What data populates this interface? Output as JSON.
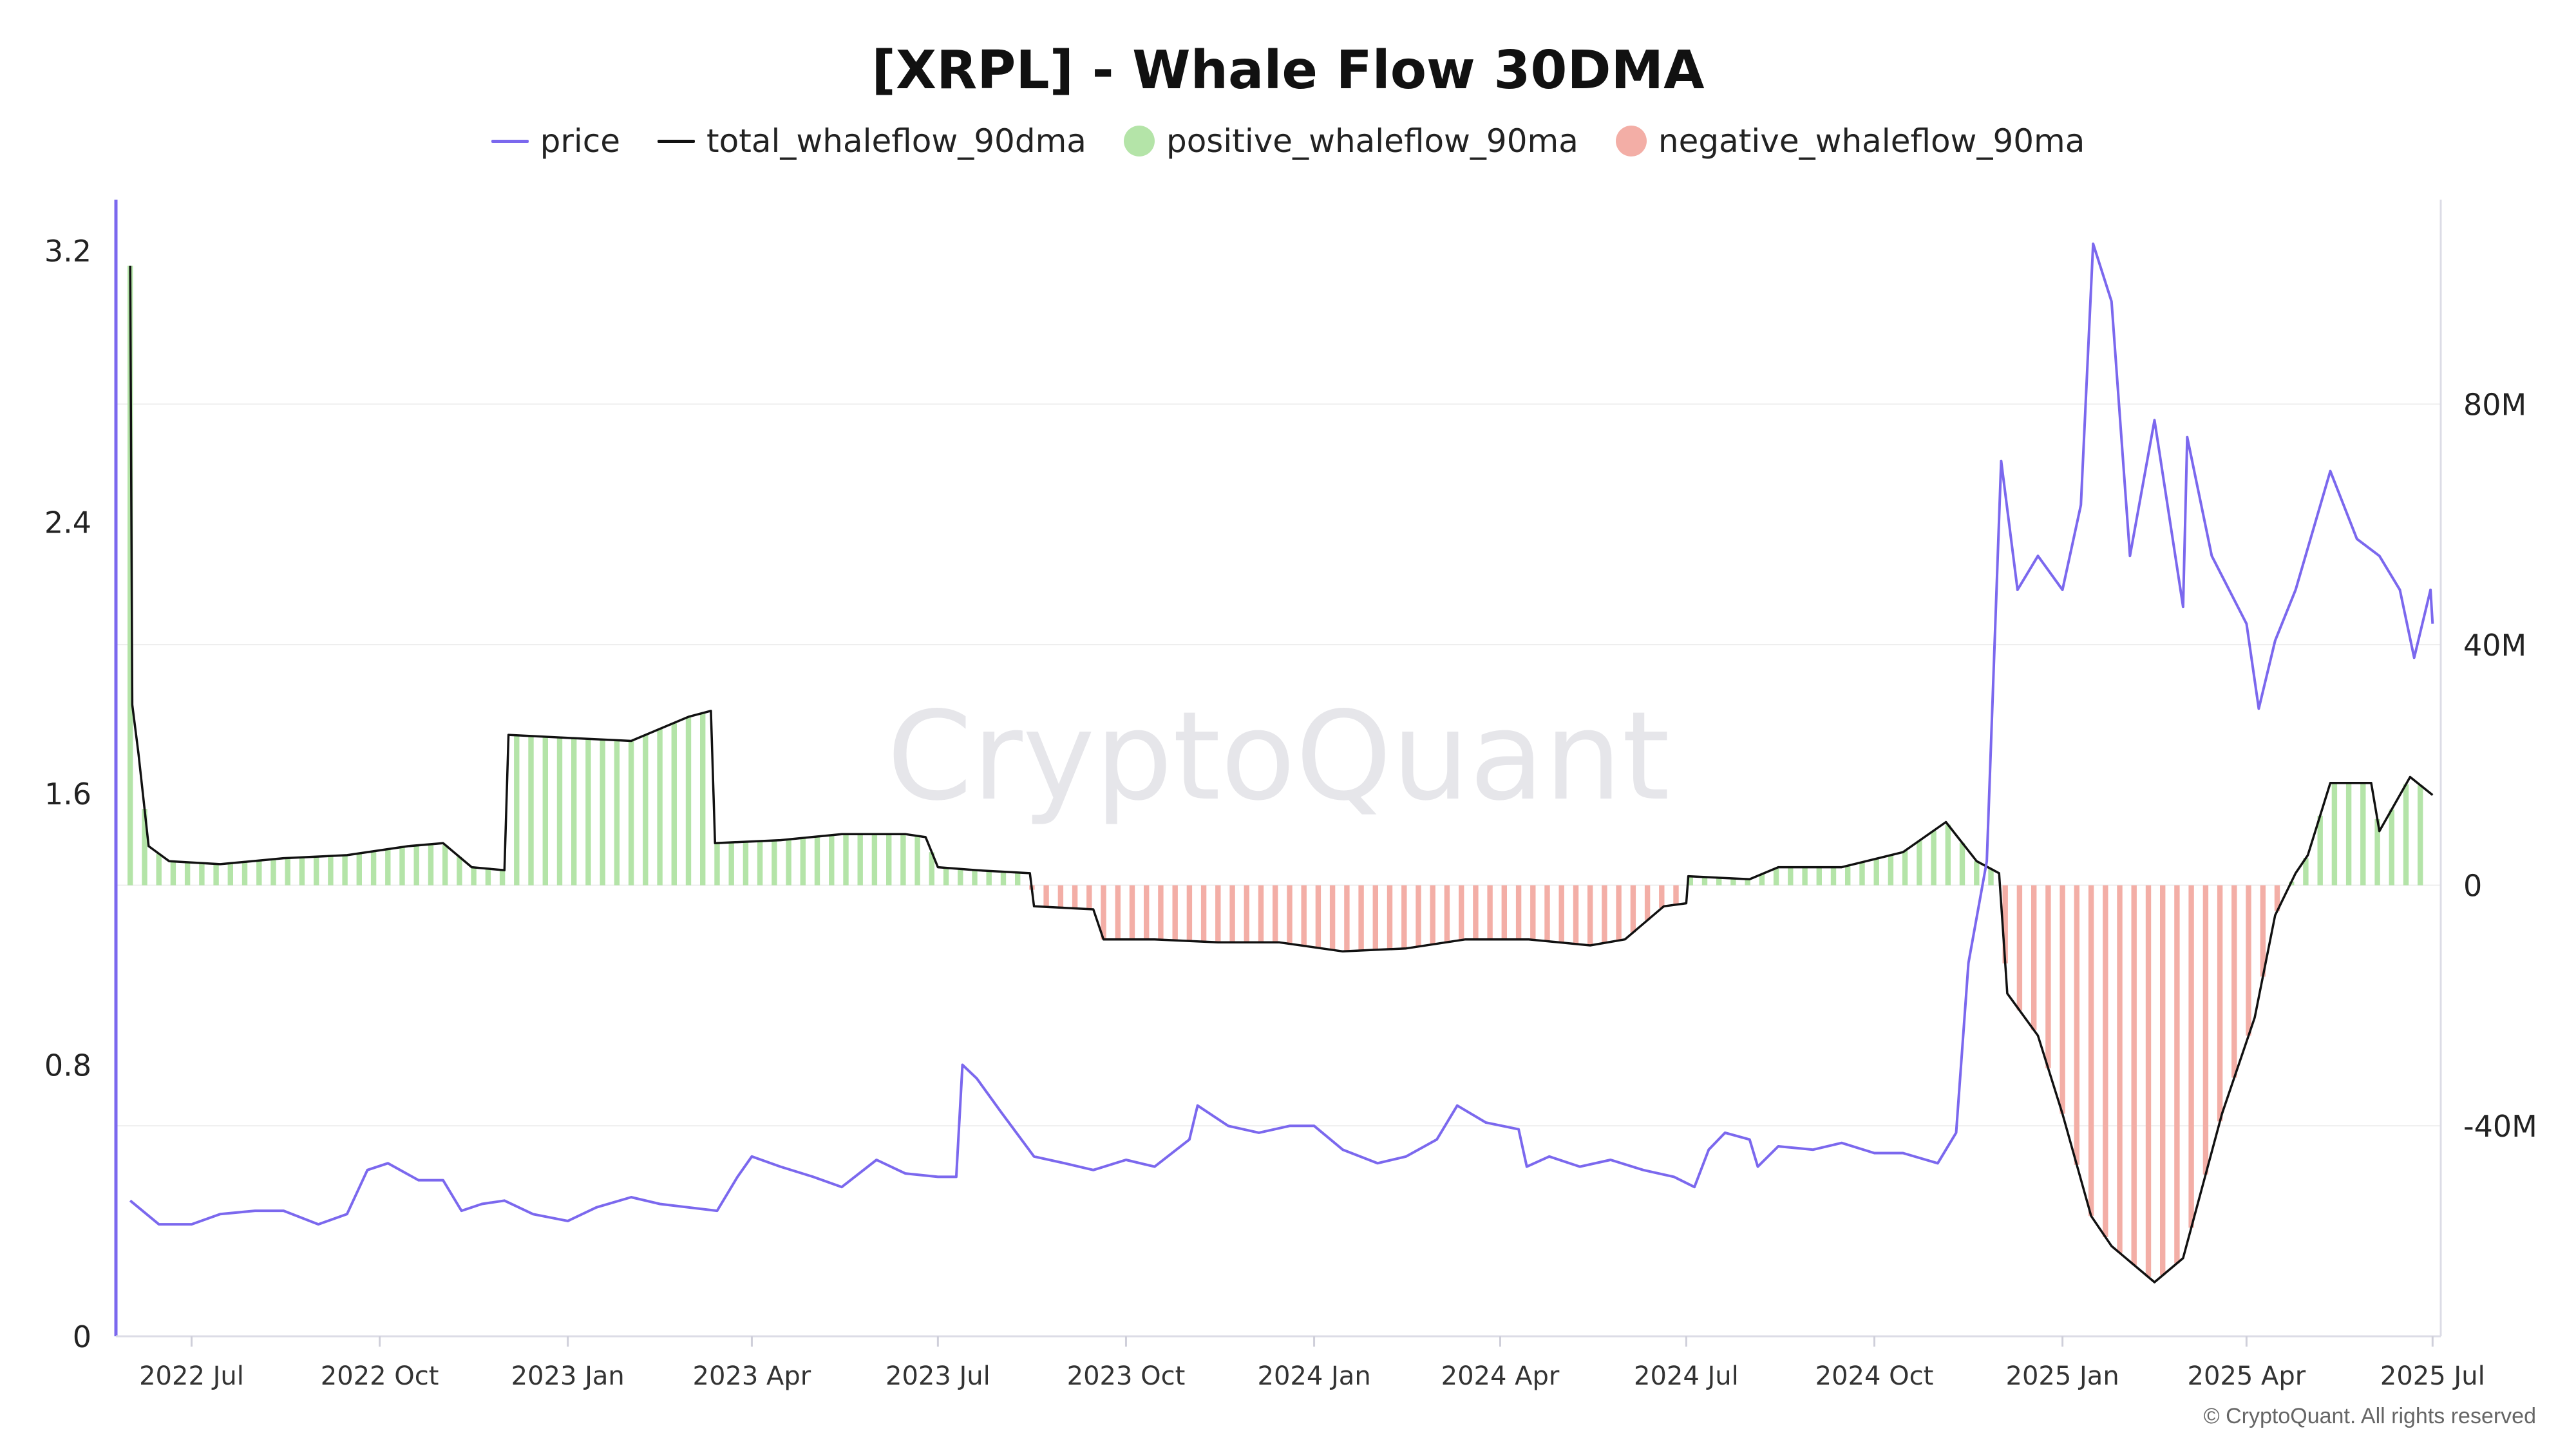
{
  "chart_data": {
    "type": "line",
    "title": "[XRPL] - Whale Flow 30DMA",
    "watermark": "CryptoQuant",
    "copyright": "© CryptoQuant. All rights reserved",
    "legend_position": "top-center",
    "grid": true,
    "colors": {
      "price": "#7b68ee",
      "total": "#111111",
      "positive_fill": "#b4e4a8",
      "negative_fill": "#f3aea6",
      "left_axis": "#7b68ee",
      "watermark": "#e6e6ea"
    },
    "x_axis": {
      "type": "date",
      "range": [
        "2022-05-25",
        "2025-07-05"
      ],
      "ticks": [
        {
          "date": "2022-07-01",
          "label": "2022 Jul"
        },
        {
          "date": "2022-10-01",
          "label": "2022 Oct"
        },
        {
          "date": "2023-01-01",
          "label": "2023 Jan"
        },
        {
          "date": "2023-04-01",
          "label": "2023 Apr"
        },
        {
          "date": "2023-07-01",
          "label": "2023 Jul"
        },
        {
          "date": "2023-10-01",
          "label": "2023 Oct"
        },
        {
          "date": "2024-01-01",
          "label": "2024 Jan"
        },
        {
          "date": "2024-04-01",
          "label": "2024 Apr"
        },
        {
          "date": "2024-07-01",
          "label": "2024 Jul"
        },
        {
          "date": "2024-10-01",
          "label": "2024 Oct"
        },
        {
          "date": "2025-01-01",
          "label": "2025 Jan"
        },
        {
          "date": "2025-04-01",
          "label": "2025 Apr"
        },
        {
          "date": "2025-07-01",
          "label": "2025 Jul"
        }
      ]
    },
    "y_left": {
      "range": [
        0,
        3.35
      ],
      "ticks": [
        {
          "value": 0,
          "label": "0"
        },
        {
          "value": 0.8,
          "label": "0.8"
        },
        {
          "value": 1.6,
          "label": "1.6"
        },
        {
          "value": 2.4,
          "label": "2.4"
        },
        {
          "value": 3.2,
          "label": "3.2"
        }
      ]
    },
    "y_right": {
      "range": [
        -75000000,
        114000000
      ],
      "ticks": [
        {
          "value": -40000000,
          "label": "-40M"
        },
        {
          "value": 0,
          "label": "0"
        },
        {
          "value": 40000000,
          "label": "40M"
        },
        {
          "value": 80000000,
          "label": "80M"
        }
      ]
    },
    "series": [
      {
        "name": "price",
        "axis": "left",
        "style": "line",
        "points": [
          [
            "2022-06-01",
            0.4
          ],
          [
            "2022-06-15",
            0.33
          ],
          [
            "2022-07-01",
            0.33
          ],
          [
            "2022-07-15",
            0.36
          ],
          [
            "2022-08-01",
            0.37
          ],
          [
            "2022-08-15",
            0.37
          ],
          [
            "2022-09-01",
            0.33
          ],
          [
            "2022-09-15",
            0.36
          ],
          [
            "2022-09-25",
            0.49
          ],
          [
            "2022-10-05",
            0.51
          ],
          [
            "2022-10-20",
            0.46
          ],
          [
            "2022-11-01",
            0.46
          ],
          [
            "2022-11-10",
            0.37
          ],
          [
            "2022-11-20",
            0.39
          ],
          [
            "2022-12-01",
            0.4
          ],
          [
            "2022-12-15",
            0.36
          ],
          [
            "2023-01-01",
            0.34
          ],
          [
            "2023-01-15",
            0.38
          ],
          [
            "2023-02-01",
            0.41
          ],
          [
            "2023-02-15",
            0.39
          ],
          [
            "2023-03-01",
            0.38
          ],
          [
            "2023-03-15",
            0.37
          ],
          [
            "2023-03-25",
            0.47
          ],
          [
            "2023-04-01",
            0.53
          ],
          [
            "2023-04-15",
            0.5
          ],
          [
            "2023-05-01",
            0.47
          ],
          [
            "2023-05-15",
            0.44
          ],
          [
            "2023-06-01",
            0.52
          ],
          [
            "2023-06-15",
            0.48
          ],
          [
            "2023-07-01",
            0.47
          ],
          [
            "2023-07-10",
            0.47
          ],
          [
            "2023-07-13",
            0.8
          ],
          [
            "2023-07-20",
            0.76
          ],
          [
            "2023-08-01",
            0.66
          ],
          [
            "2023-08-17",
            0.53
          ],
          [
            "2023-09-01",
            0.51
          ],
          [
            "2023-09-15",
            0.49
          ],
          [
            "2023-10-01",
            0.52
          ],
          [
            "2023-10-15",
            0.5
          ],
          [
            "2023-11-01",
            0.58
          ],
          [
            "2023-11-05",
            0.68
          ],
          [
            "2023-11-20",
            0.62
          ],
          [
            "2023-12-05",
            0.6
          ],
          [
            "2023-12-20",
            0.62
          ],
          [
            "2024-01-01",
            0.62
          ],
          [
            "2024-01-15",
            0.55
          ],
          [
            "2024-02-01",
            0.51
          ],
          [
            "2024-02-15",
            0.53
          ],
          [
            "2024-03-01",
            0.58
          ],
          [
            "2024-03-11",
            0.68
          ],
          [
            "2024-03-25",
            0.63
          ],
          [
            "2024-04-10",
            0.61
          ],
          [
            "2024-04-14",
            0.5
          ],
          [
            "2024-04-25",
            0.53
          ],
          [
            "2024-05-10",
            0.5
          ],
          [
            "2024-05-25",
            0.52
          ],
          [
            "2024-06-10",
            0.49
          ],
          [
            "2024-06-25",
            0.47
          ],
          [
            "2024-07-05",
            0.44
          ],
          [
            "2024-07-12",
            0.55
          ],
          [
            "2024-07-20",
            0.6
          ],
          [
            "2024-08-01",
            0.58
          ],
          [
            "2024-08-05",
            0.5
          ],
          [
            "2024-08-15",
            0.56
          ],
          [
            "2024-09-01",
            0.55
          ],
          [
            "2024-09-15",
            0.57
          ],
          [
            "2024-10-01",
            0.54
          ],
          [
            "2024-10-15",
            0.54
          ],
          [
            "2024-11-01",
            0.51
          ],
          [
            "2024-11-10",
            0.6
          ],
          [
            "2024-11-16",
            1.1
          ],
          [
            "2024-11-25",
            1.4
          ],
          [
            "2024-12-02",
            2.58
          ],
          [
            "2024-12-10",
            2.2
          ],
          [
            "2024-12-20",
            2.3
          ],
          [
            "2025-01-01",
            2.2
          ],
          [
            "2025-01-10",
            2.45
          ],
          [
            "2025-01-16",
            3.22
          ],
          [
            "2025-01-25",
            3.05
          ],
          [
            "2025-02-03",
            2.3
          ],
          [
            "2025-02-15",
            2.7
          ],
          [
            "2025-03-01",
            2.15
          ],
          [
            "2025-03-03",
            2.65
          ],
          [
            "2025-03-15",
            2.3
          ],
          [
            "2025-04-01",
            2.1
          ],
          [
            "2025-04-07",
            1.85
          ],
          [
            "2025-04-15",
            2.05
          ],
          [
            "2025-04-25",
            2.2
          ],
          [
            "2025-05-12",
            2.55
          ],
          [
            "2025-05-25",
            2.35
          ],
          [
            "2025-06-05",
            2.3
          ],
          [
            "2025-06-15",
            2.2
          ],
          [
            "2025-06-22",
            2.0
          ],
          [
            "2025-06-30",
            2.2
          ],
          [
            "2025-07-01",
            2.1
          ]
        ]
      },
      {
        "name": "total_whaleflow_90dma",
        "axis": "right",
        "style": "line",
        "points": [
          [
            "2022-06-01",
            103000000
          ],
          [
            "2022-06-02",
            30000000
          ],
          [
            "2022-06-05",
            22000000
          ],
          [
            "2022-06-10",
            6500000
          ],
          [
            "2022-06-20",
            4000000
          ],
          [
            "2022-07-15",
            3500000
          ],
          [
            "2022-08-15",
            4500000
          ],
          [
            "2022-09-15",
            5000000
          ],
          [
            "2022-10-15",
            6500000
          ],
          [
            "2022-11-01",
            7000000
          ],
          [
            "2022-11-15",
            3000000
          ],
          [
            "2022-12-01",
            2500000
          ],
          [
            "2022-12-03",
            25000000
          ],
          [
            "2023-01-01",
            24500000
          ],
          [
            "2023-02-01",
            24000000
          ],
          [
            "2023-03-01",
            28000000
          ],
          [
            "2023-03-12",
            29000000
          ],
          [
            "2023-03-14",
            7000000
          ],
          [
            "2023-04-15",
            7500000
          ],
          [
            "2023-05-15",
            8500000
          ],
          [
            "2023-06-15",
            8500000
          ],
          [
            "2023-06-25",
            8000000
          ],
          [
            "2023-07-01",
            3000000
          ],
          [
            "2023-07-20",
            2500000
          ],
          [
            "2023-08-15",
            2000000
          ],
          [
            "2023-08-17",
            -3500000
          ],
          [
            "2023-09-15",
            -4000000
          ],
          [
            "2023-09-20",
            -9000000
          ],
          [
            "2023-10-15",
            -9000000
          ],
          [
            "2023-11-15",
            -9500000
          ],
          [
            "2023-12-15",
            -9500000
          ],
          [
            "2024-01-15",
            -11000000
          ],
          [
            "2024-02-15",
            -10500000
          ],
          [
            "2024-03-15",
            -9000000
          ],
          [
            "2024-04-15",
            -9000000
          ],
          [
            "2024-05-15",
            -10000000
          ],
          [
            "2024-06-01",
            -9000000
          ],
          [
            "2024-06-20",
            -3500000
          ],
          [
            "2024-07-01",
            -3000000
          ],
          [
            "2024-07-02",
            1500000
          ],
          [
            "2024-08-01",
            1000000
          ],
          [
            "2024-08-15",
            3000000
          ],
          [
            "2024-09-15",
            3000000
          ],
          [
            "2024-10-15",
            5500000
          ],
          [
            "2024-11-05",
            10500000
          ],
          [
            "2024-11-20",
            4000000
          ],
          [
            "2024-12-01",
            2000000
          ],
          [
            "2024-12-05",
            -18000000
          ],
          [
            "2024-12-20",
            -25000000
          ],
          [
            "2025-01-01",
            -38000000
          ],
          [
            "2025-01-15",
            -55000000
          ],
          [
            "2025-01-25",
            -60000000
          ],
          [
            "2025-02-15",
            -66000000
          ],
          [
            "2025-03-01",
            -62000000
          ],
          [
            "2025-03-20",
            -38000000
          ],
          [
            "2025-04-05",
            -22000000
          ],
          [
            "2025-04-15",
            -5000000
          ],
          [
            "2025-04-25",
            2000000
          ],
          [
            "2025-05-01",
            5000000
          ],
          [
            "2025-05-12",
            17000000
          ],
          [
            "2025-06-01",
            17000000
          ],
          [
            "2025-06-05",
            9000000
          ],
          [
            "2025-06-20",
            18000000
          ],
          [
            "2025-07-01",
            15000000
          ]
        ]
      },
      {
        "name": "positive_whaleflow_90ma",
        "axis": "right",
        "style": "area-above-zero"
      },
      {
        "name": "negative_whaleflow_90ma",
        "axis": "right",
        "style": "area-below-zero"
      }
    ]
  }
}
